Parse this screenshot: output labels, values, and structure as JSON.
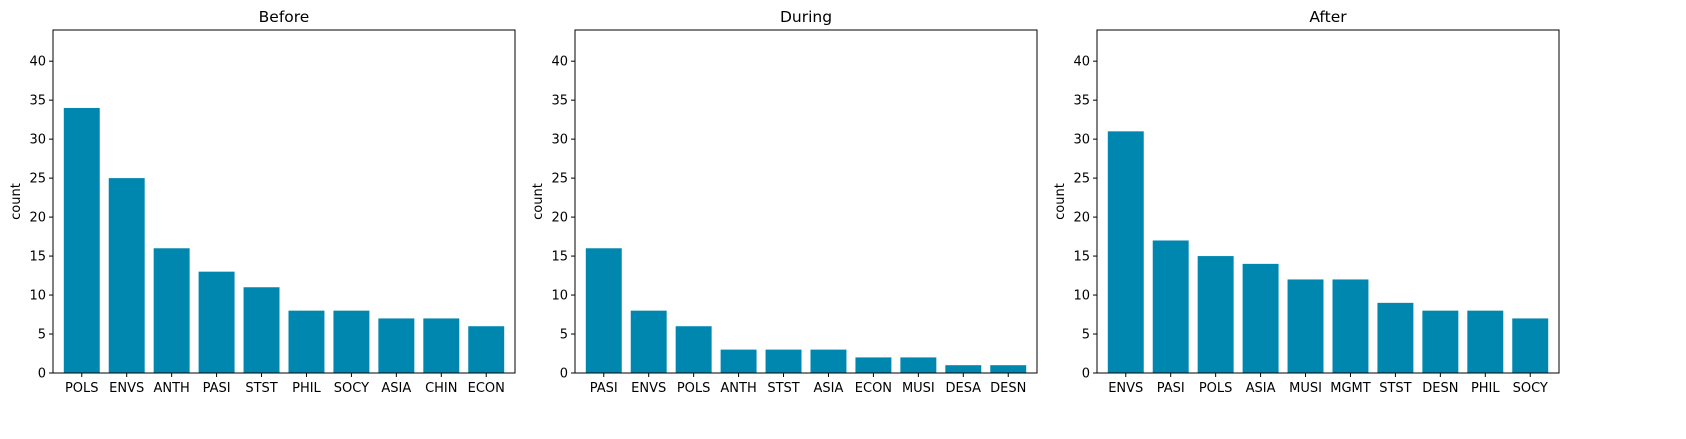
{
  "chart_data": [
    {
      "type": "bar",
      "title": "Before",
      "xlabel": "",
      "ylabel": "count",
      "ylim": [
        0,
        44
      ],
      "yticks": [
        0,
        5,
        10,
        15,
        20,
        25,
        30,
        35,
        40
      ],
      "categories": [
        "POLS",
        "ENVS",
        "ANTH",
        "PASI",
        "STST",
        "PHIL",
        "SOCY",
        "ASIA",
        "CHIN",
        "ECON"
      ],
      "values": [
        34,
        25,
        16,
        13,
        11,
        8,
        8,
        7,
        7,
        6
      ],
      "color": "#0087AF"
    },
    {
      "type": "bar",
      "title": "During",
      "xlabel": "",
      "ylabel": "count",
      "ylim": [
        0,
        44
      ],
      "yticks": [
        0,
        5,
        10,
        15,
        20,
        25,
        30,
        35,
        40
      ],
      "categories": [
        "PASI",
        "ENVS",
        "POLS",
        "ANTH",
        "STST",
        "ASIA",
        "ECON",
        "MUSI",
        "DESA",
        "DESN"
      ],
      "values": [
        16,
        8,
        6,
        3,
        3,
        3,
        2,
        2,
        1,
        1
      ],
      "color": "#0087AF"
    },
    {
      "type": "bar",
      "title": "After",
      "xlabel": "",
      "ylabel": "count",
      "ylim": [
        0,
        44
      ],
      "yticks": [
        0,
        5,
        10,
        15,
        20,
        25,
        30,
        35,
        40
      ],
      "categories": [
        "ENVS",
        "PASI",
        "POLS",
        "ASIA",
        "MUSI",
        "MGMT",
        "STST",
        "DESN",
        "PHIL",
        "SOCY"
      ],
      "values": [
        31,
        17,
        15,
        14,
        12,
        12,
        9,
        8,
        8,
        7
      ],
      "color": "#0087AF"
    }
  ]
}
